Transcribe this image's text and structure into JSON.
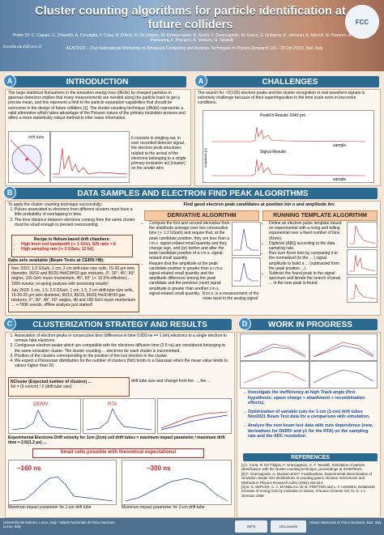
{
  "header": {
    "title": "Cluster counting algorithms for particle identification at future colliders",
    "authors": "Potter 22: C. Caputo, C. Chiarello, A. Corvaglia, F. Cuna, B. D'Anzi, N. De Filippis, W. Elmetenawee, E. Gorini, F. Grancagnolo, M. Greco, S. Gribanov, K. Johnson, A. Miccoli, M. Panareo, A. Popov, M. Primavera, F. Procacci, A. Ventura, G. Tassielli",
    "email": "brunella.danzi@cern.ch",
    "conference": "ACAT2022 – 21st International Workshop on Advanced Computing and Analysis Techniques in Physics Research (23 – 28 Oct 2022), Bari, Italy",
    "logo_text": "FCC"
  },
  "intro": {
    "badge": "A",
    "title": "INTRODUCTION",
    "para1": "The large statistical fluctuations in the ionization energy loss (dE/dx) by charged particles in gaseous detectors implies that many measurements are needed along the particle track to get a precise mean, and this represent a limit to the particle separation capabilities that should be overcome in the design of future colliders [1]. The cluster counting technique (dN/dx) represents a valid alternative which takes advantage of the Poisson nature of the primary ionization process and offers a more statistically robust method to infer mass information.",
    "para2": "It consists in singling out, in ever recorded detector signal, the electron peak structures related to the arrival of the electrons belonging to a single primary ionization act (cluster) on the anode wire.",
    "drift_label": "drift tube"
  },
  "challenges": {
    "badge": "A",
    "title": "CHALLENGES",
    "text": "The search for ~O(100) electron peaks and the cluster recognition in real waveform signals is extremely challenge because of their superimposition in the time scale even in low-noise conditions.",
    "plot1_title": "PeakFit Results 1040 pnt",
    "plot2_title": "Signal Results",
    "xlabel": "sample",
    "ylabel": "Amplitude [V]"
  },
  "data_samples": {
    "badge": "B",
    "title": "DATA SAMPLES AND ELECTRON FIND PEAK ALGORITHMS",
    "intro": "To apply the cluster counting technique successfully:",
    "steps": [
      "Pulses associated to electrons from different clusters must have a little probability of overlapping in time.",
      "The time distance between electrons coming from the same cluster must be small enough to prevent overcounting."
    ],
    "recipe_title": "Recipe in Helium-based drift chambers:",
    "recipe": [
      "High front end bandwidth (≃ 1 GHz), S/N ratio > 8",
      "High sampling rate (≃ 2 GSa/s, 12 bit)"
    ],
    "beam_title": "Data sets available (Beam Tests at CERN H8):",
    "nov": "Nov. 2021: 1.2 GSa/s, 1 cm, 2 cm drift-tube size cells, 15-30 µm wire diameter, 90/10 and 80/20 He/iC4H10 gas mixtures, 0°, 30°, 45°, 60° angles, 165 GeV muon momentum, 45°, 60° (≃ 12.5% effective) ... 1000 events, on-going analysis with promising results!",
    "jul": "July 2022: 1 cm, 1.5, 2.0 GSa/s, 1 cm, 1.5, 2 cm drift-tube size cells, 15-20-25 µm wire diameter, 90/10, 85/15, 80/20 He/iC4H10 gas mixtures, 0°, 30°, 45°, 60° angles, 40 and 180 GeV muon momentum ... ≃700K events, offline analysis just started!",
    "find_peak": "Find good electron peak candidates at position bin n and amplitude An:",
    "deriv_title": "DERIVATIVE ALGORITHM",
    "deriv": [
      "Compute the first and second derivative from the amplitude average over two consecutive bins (≃ 1.2 GSa/s) and require that, at the peak candidate position, they are less than a r.m.s. signal-related small quantity and they change sign, and (or) before and after the peak candidate position of a r.m.s. signal-related small quantity.",
      "Require that the amplitude at the peak candidate position is greater than a r.m.s. signal-related small quantity and the amplitude difference among the peak candidate and the previous (next) signal amplitude is greater than another r.m.s. signal-related small quantity."
    ],
    "rms_note": "R.m.s. is a measurement of the noise level in the analog signal",
    "running_title": "RUNNING TEMPLATE ALGORITHM",
    "running": [
      "Define an electron pulse template based on experimental with a rising and falling exponential over a fixed number of bins (Kone).",
      "Digitized (A[K]) according to the data sampling rate.",
      "Run over Kone bins by comparing it to the normalized (to the ... ) signal amplitude to build a ... (subtracted from the peak position ...).",
      "Subtract the found peak to the signal spectrum and iterate the search of peak ... in the new peak is found."
    ]
  },
  "clusterization": {
    "badge": "C",
    "title": "CLUSTERIZATION STRATEGY AND RESULTS",
    "steps": [
      "Association of electron peaks in consecutive bins (difference in time 0.833 ns == 1 bin) electrons to a single electron to remove fake electrons.",
      "Contiguous electron peaks which are compatible with the electrons diffusion time (2.5 ns) are considered belonging to the same ionization cluster. The cluster counting ... electrons for each cluster is incremented.",
      "Position of the clusters corresponding to the position of the last electron in the cluster.",
      "We expect a Poissonian distribution for the number of clusters (Ncl) tends to a Gaussian when the mean value tends to values higher than 20."
    ],
    "ncl_title": "NCluster (Expected number of clusters) ...",
    "ncl_text": "δcl = (δ cm/cm) / 2 (drift tube size)",
    "ncl_note": "drift tube size and change from the ..., the ...",
    "legend_deriv": "DERIV",
    "legend_rta": "RTA",
    "drift_velocity": "Experimental Electrons Drift velocity for 1cm (2cm) cell drift tubes = maximum impact parameter / maximum drift time = 2.5/(1.2 µs) ...",
    "small_cells": "Small cells possible with theoretical expectations!",
    "ann1": "~160 ns",
    "ann2": "~300 ns",
    "cap1": "Maximum impact parameter for 1-cm drift tube",
    "cap2": "Maximum impact parameter for 2-cm drift tube"
  },
  "progress": {
    "badge": "D",
    "title": "WORK IN PROGRESS",
    "items": [
      "Investigate the inefficiency at high Track angle (first hypothesis: space charge + attachment + recombination effects).",
      "Optimization of variable cuts for 1-cm (1-cm) drift tubes Nov2021 Beam Test data for a comparison with simulation.",
      "Analyze the new beam test data with cuts dependence (new, derivatives for DERIV and γ1 for the RTA) on the sampling rate and the ADC resolution."
    ]
  },
  "references": {
    "title": "REFERENCES",
    "items": [
      "[1] I. Cuna, N. De Filippis, F. Grancagnolo, G. F. Tassielli, Simulation of particle identification with the cluster counting technique, proceedings at ICHEP2021.",
      "[2] F. Grancagnolo, A. Muratori and F. Fouldoveleas, Experimental determination of ionization cluster size distributions in counting gases, Nuclear Instruments and Methods in Physics Research A301 (1991) 202-214.",
      "[3] B. G. KEPLER, C. A. D'ANDLAU, W. B. FRETTER and L. F. HANSEN, Relativistic increase of energy loss by ionization in Gases, Il Nuovo Cimento Vol. IV, N. 1 1 Gennaio 1958"
    ]
  },
  "footer": {
    "left": "Università del Salento, Lecce, Italy / Istituto Nazionale di Fisica Nucleare, Lecce, Italy",
    "logo1": "INFN",
    "logo2": "UCLouvain",
    "right": "Istituto Nazionale di Fisica Nucleare, Bari, Italy"
  }
}
